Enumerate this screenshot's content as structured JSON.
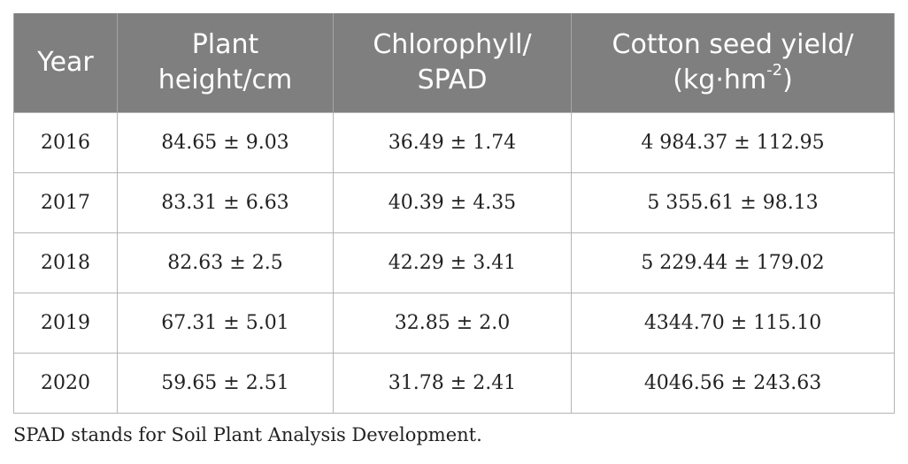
{
  "table": {
    "headers": {
      "year": "Year",
      "plant_height_line1": "Plant",
      "plant_height_line2": "height/cm",
      "chlorophyll_line1": "Chlorophyll/",
      "chlorophyll_line2": "SPAD",
      "yield_line1": "Cotton seed yield/",
      "yield_line2_pre": "(kg·hm",
      "yield_line2_sup": "-2",
      "yield_line2_post": ")"
    },
    "rows": [
      {
        "year": "2016",
        "plant_height": "84.65 ± 9.03",
        "chlorophyll": "36.49 ± 1.74",
        "yield": "4 984.37 ± 112.95"
      },
      {
        "year": "2017",
        "plant_height": "83.31 ± 6.63",
        "chlorophyll": "40.39 ± 4.35",
        "yield": "5 355.61 ± 98.13"
      },
      {
        "year": "2018",
        "plant_height": "82.63 ± 2.5",
        "chlorophyll": "42.29 ± 3.41",
        "yield": "5 229.44 ± 179.02"
      },
      {
        "year": "2019",
        "plant_height": "67.31 ± 5.01",
        "chlorophyll": "32.85 ± 2.0",
        "yield": "4344.70 ± 115.10"
      },
      {
        "year": "2020",
        "plant_height": "59.65 ± 2.51",
        "chlorophyll": "31.78 ± 2.41",
        "yield": "4046.56 ± 243.63"
      }
    ]
  },
  "footnote": "SPAD stands for Soil Plant Analysis Development."
}
